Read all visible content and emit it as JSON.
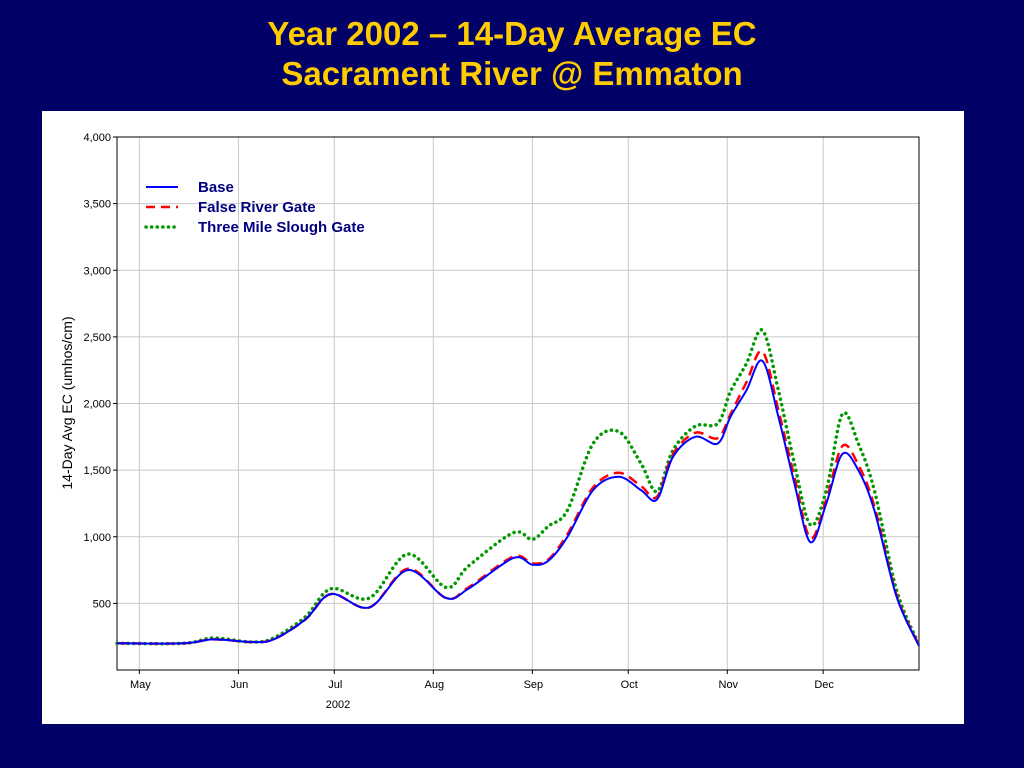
{
  "header": {
    "title_line1": "Year 2002 – 14-Day Average EC",
    "title_line2": "Sacrament River @ Emmaton"
  },
  "chart_data": {
    "type": "line",
    "title": "Year 2002 – 14-Day Average EC\nSacrament River @ Emmaton",
    "ylabel": "14-Day Avg EC (umhos/cm)",
    "xlabel": "2002",
    "ylim": [
      0,
      4000
    ],
    "y_ticks": [
      500,
      1000,
      1500,
      2000,
      2500,
      3000,
      3500,
      4000
    ],
    "y_tick_labels": [
      "500",
      "1,000",
      "1,500",
      "2,000",
      "2,500",
      "3,000",
      "3,500",
      "4,000"
    ],
    "x_ticks": [
      "May",
      "Jun",
      "Jul",
      "Aug",
      "Sep",
      "Oct",
      "Nov",
      "Dec"
    ],
    "x_range": [
      "2002-04-24",
      "2002-12-31"
    ],
    "grid": true,
    "legend_position": "top-left",
    "x": [
      "2002-04-24",
      "2002-05-15",
      "2002-05-24",
      "2002-06-05",
      "2002-06-12",
      "2002-06-22",
      "2002-06-30",
      "2002-07-12",
      "2002-07-24",
      "2002-08-05",
      "2002-08-12",
      "2002-08-26",
      "2002-09-01",
      "2002-09-06",
      "2002-09-12",
      "2002-09-20",
      "2002-09-28",
      "2002-10-05",
      "2002-10-10",
      "2002-10-15",
      "2002-10-22",
      "2002-10-29",
      "2002-11-02",
      "2002-11-07",
      "2002-11-12",
      "2002-11-17",
      "2002-11-22",
      "2002-11-27",
      "2002-12-02",
      "2002-12-07",
      "2002-12-12",
      "2002-12-17",
      "2002-12-24",
      "2002-12-31"
    ],
    "series": [
      {
        "name": "Base",
        "color": "#0000ff",
        "style": "solid",
        "values": [
          200,
          200,
          230,
          210,
          230,
          380,
          570,
          470,
          750,
          540,
          610,
          840,
          790,
          820,
          1000,
          1350,
          1450,
          1350,
          1280,
          1600,
          1750,
          1700,
          1900,
          2100,
          2320,
          1900,
          1400,
          960,
          1250,
          1620,
          1500,
          1200,
          550,
          180
        ]
      },
      {
        "name": "False River Gate",
        "color": "#ff0000",
        "style": "dashed",
        "values": [
          200,
          200,
          230,
          210,
          230,
          380,
          570,
          470,
          760,
          540,
          620,
          850,
          800,
          830,
          1020,
          1370,
          1480,
          1380,
          1300,
          1620,
          1780,
          1740,
          1920,
          2160,
          2390,
          1950,
          1450,
          990,
          1280,
          1680,
          1540,
          1230,
          560,
          185
        ]
      },
      {
        "name": "Three Mile Slough Gate",
        "color": "#009900",
        "style": "dotted",
        "values": [
          200,
          200,
          240,
          210,
          240,
          400,
          610,
          540,
          870,
          620,
          780,
          1030,
          980,
          1080,
          1200,
          1700,
          1790,
          1550,
          1340,
          1650,
          1830,
          1850,
          2090,
          2300,
          2550,
          2100,
          1550,
          1090,
          1350,
          1920,
          1700,
          1350,
          600,
          190
        ]
      }
    ]
  }
}
